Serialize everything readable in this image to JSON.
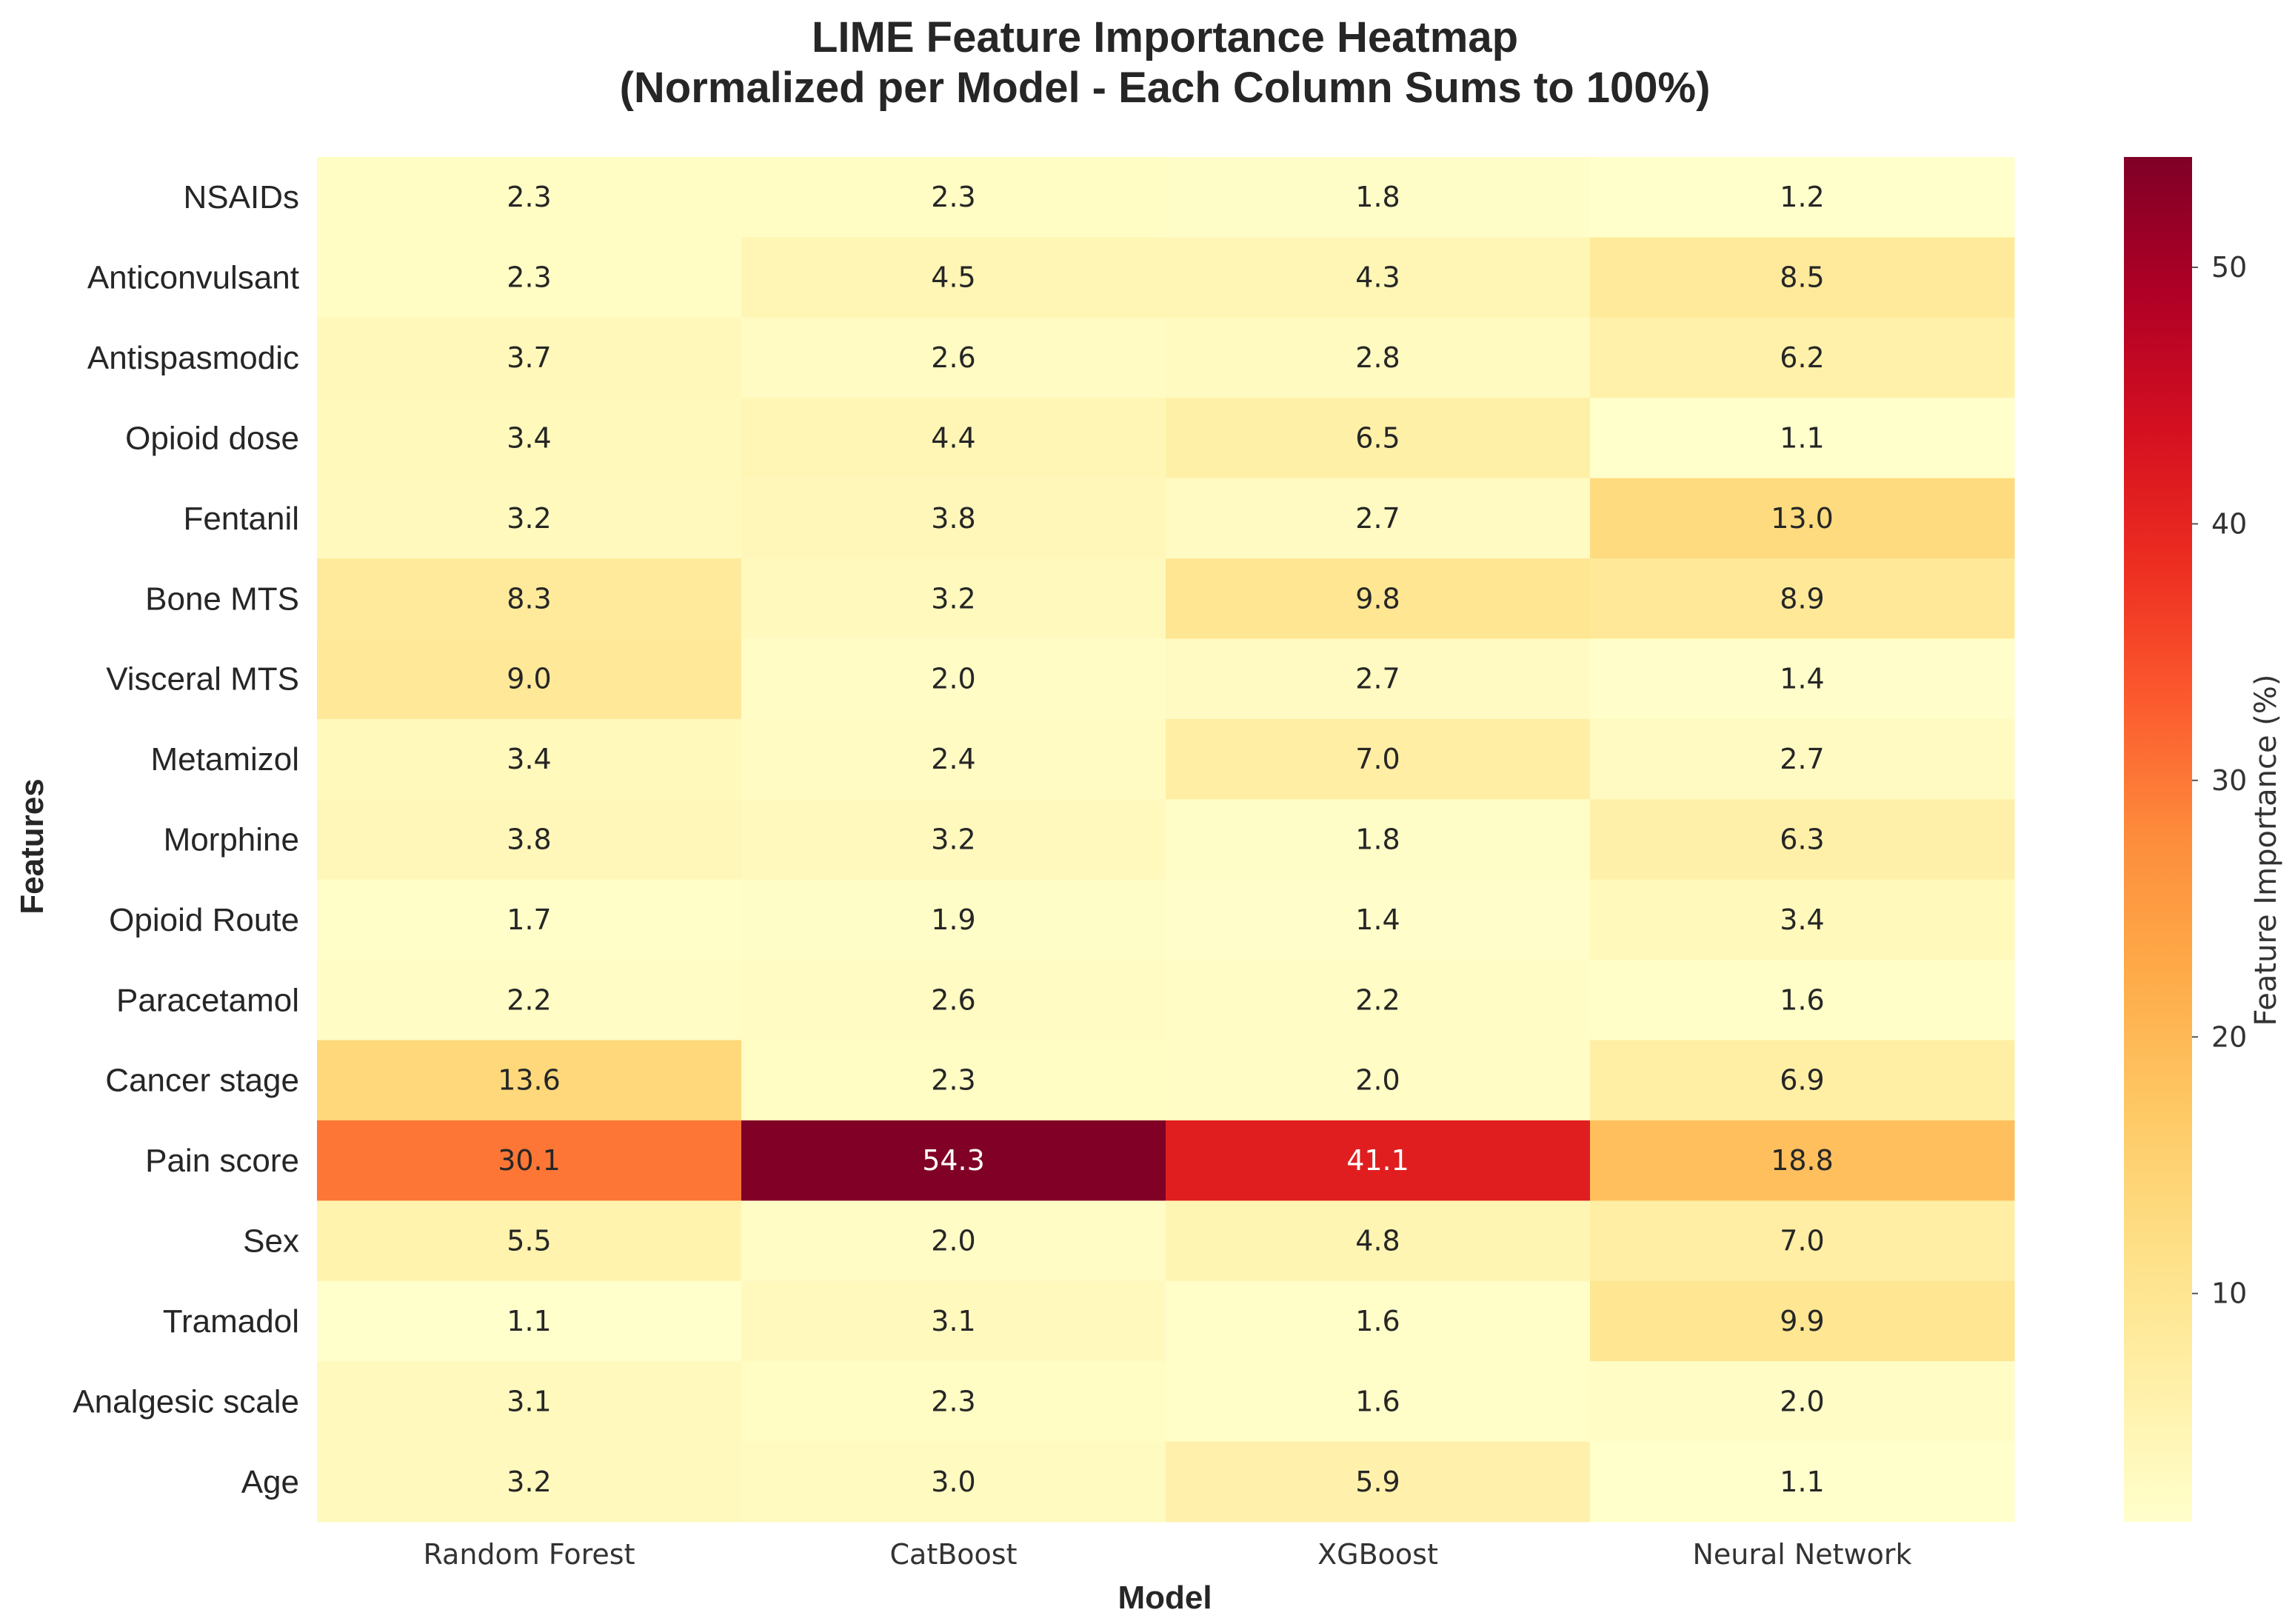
{
  "chart_data": {
    "type": "heatmap",
    "title": "LIME Feature Importance Heatmap",
    "subtitle": "(Normalized per Model - Each Column Sums to 100%)",
    "xlabel": "Model",
    "ylabel": "Features",
    "colorbar_label": "Feature Importance (%)",
    "colorbar_ticks": [
      10,
      20,
      30,
      40,
      50
    ],
    "colorbar_range": [
      1.1,
      54.3
    ],
    "colormap": [
      "#ffffcc",
      "#fff0a8",
      "#fee087",
      "#fec965",
      "#feab49",
      "#fd8d3c",
      "#fc5b2e",
      "#ed2e21",
      "#d41020",
      "#b00026",
      "#800026"
    ],
    "models": [
      "Random Forest",
      "CatBoost",
      "XGBoost",
      "Neural Network"
    ],
    "features": [
      "NSAIDs",
      "Anticonvulsant",
      "Antispasmodic",
      "Opioid dose",
      "Fentanil",
      "Bone MTS",
      "Visceral MTS",
      "Metamizol",
      "Morphine",
      "Opioid Route",
      "Paracetamol",
      "Cancer stage",
      "Pain score",
      "Sex",
      "Tramadol",
      "Analgesic scale",
      "Age"
    ],
    "values": [
      [
        2.3,
        2.3,
        1.8,
        1.2
      ],
      [
        2.3,
        4.5,
        4.3,
        8.5
      ],
      [
        3.7,
        2.6,
        2.8,
        6.2
      ],
      [
        3.4,
        4.4,
        6.5,
        1.1
      ],
      [
        3.2,
        3.8,
        2.7,
        13.0
      ],
      [
        8.3,
        3.2,
        9.8,
        8.9
      ],
      [
        9.0,
        2.0,
        2.7,
        1.4
      ],
      [
        3.4,
        2.4,
        7.0,
        2.7
      ],
      [
        3.8,
        3.2,
        1.8,
        6.3
      ],
      [
        1.7,
        1.9,
        1.4,
        3.4
      ],
      [
        2.2,
        2.6,
        2.2,
        1.6
      ],
      [
        13.6,
        2.3,
        2.0,
        6.9
      ],
      [
        30.1,
        54.3,
        41.1,
        18.8
      ],
      [
        5.5,
        2.0,
        4.8,
        7.0
      ],
      [
        1.1,
        3.1,
        1.6,
        9.9
      ],
      [
        3.1,
        2.3,
        1.6,
        2.0
      ],
      [
        3.2,
        3.0,
        5.9,
        1.1
      ]
    ]
  }
}
